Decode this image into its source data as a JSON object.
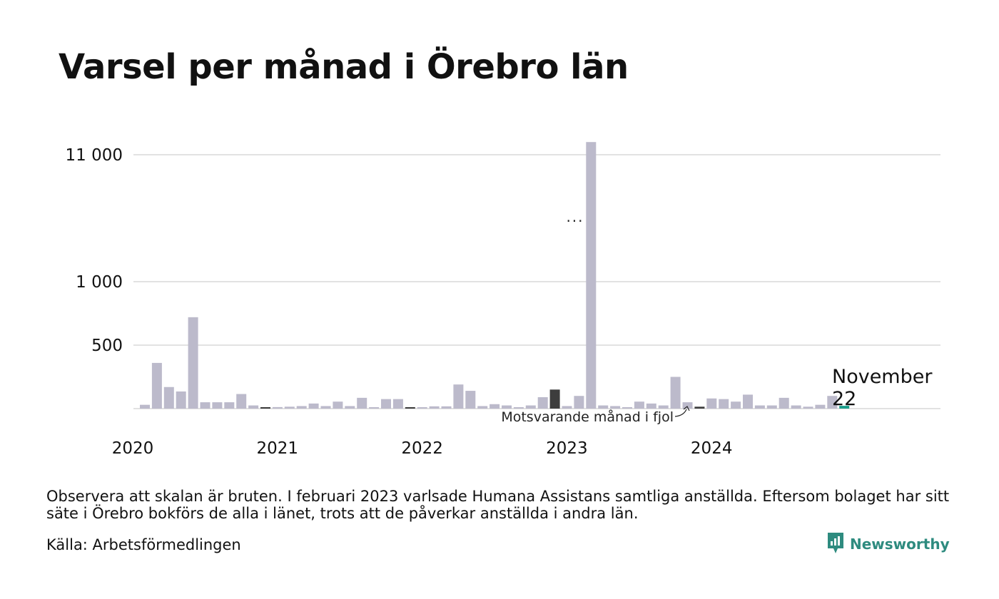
{
  "title": "Varsel per månad i Örebro län",
  "footnote": "Observera att skalan är bruten. I februari 2023 varlsade Humana Assistans samtliga anställda. Eftersom bolaget har sitt säte i Örebro bokförs de alla i länet, trots att de påverkar anställda i andra län.",
  "source": "Källa: Arbetsförmedlingen",
  "brand": {
    "name": "Newsworthy",
    "color": "#2e8b7f",
    "icon": "newsworthy-logo-icon"
  },
  "annotations": {
    "previous_year_label": "Motsvarande månad i fjol",
    "current_month": "November",
    "current_value": "22",
    "break_marker": "..."
  },
  "colors": {
    "bar": "#bcbacb",
    "previous_year": "#3d3d3d",
    "current": "#1a9e8b",
    "grid": "#e2e2e2"
  },
  "chart_data": {
    "type": "bar",
    "title": "Varsel per månad i Örebro län",
    "scale": "broken",
    "y_ticks": [
      {
        "label": "500",
        "value": 500
      },
      {
        "label": "1 000",
        "value": 1000
      },
      {
        "label": "11 000",
        "value": 11000
      }
    ],
    "x_ticks": [
      "2020",
      "2021",
      "2022",
      "2023",
      "2024"
    ],
    "grid": true,
    "series": [
      {
        "values": [
          30,
          360,
          170,
          135,
          720,
          50,
          50,
          50,
          115,
          25,
          5,
          12,
          15,
          20,
          40,
          20,
          55,
          20,
          85,
          5,
          75,
          75,
          3,
          5,
          18,
          18,
          190,
          140,
          20,
          35,
          25,
          2,
          25,
          90,
          150,
          20,
          100,
          12000,
          25,
          20,
          5,
          55,
          40,
          25,
          250,
          50,
          15,
          80,
          75,
          55,
          110,
          25,
          25,
          85,
          25,
          15,
          30,
          100,
          22
        ],
        "start": "2020-01",
        "previous_year_months": [
          "2020-11",
          "2021-11",
          "2022-11",
          "2023-11"
        ],
        "current_month": "2024-11"
      }
    ]
  }
}
